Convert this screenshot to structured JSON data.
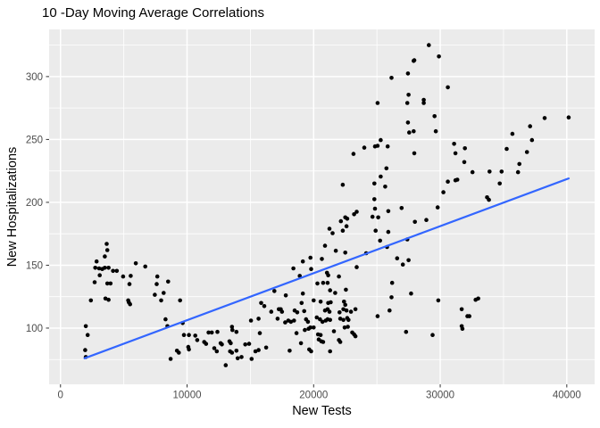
{
  "chart_data": {
    "type": "scatter",
    "title": "10 -Day Moving Average Correlations",
    "xlabel": "New Tests",
    "ylabel": "New Hospitalizations",
    "xlim": [
      -900,
      42200
    ],
    "ylim": [
      55.3,
      337.5
    ],
    "x_major_ticks": [
      0,
      10000,
      20000,
      30000,
      40000
    ],
    "x_tick_labels": [
      "0",
      "10000",
      "20000",
      "30000",
      "40000"
    ],
    "x_minor_ticks": [
      5000,
      15000,
      25000,
      35000
    ],
    "y_major_ticks": [
      100,
      150,
      200,
      250,
      300
    ],
    "y_tick_labels": [
      "100",
      "150",
      "200",
      "250",
      "300"
    ],
    "y_minor_ticks": [
      75,
      125,
      175,
      225,
      275,
      325
    ],
    "grid": "on",
    "legend_position": "none",
    "colors": {
      "panel_bg": "#EBEBEB",
      "grid": "#FFFFFF",
      "point": "#000000",
      "trend": "#3366FF",
      "tick_text": "#4D4D4D",
      "tick_mark": "#333333",
      "title_text": "#000000"
    },
    "trend_line": {
      "model": "linear",
      "x1": 1900,
      "y1": 76,
      "x2": 40150,
      "y2": 219
    },
    "points": [
      [
        3650,
        167
      ],
      [
        3700,
        162
      ],
      [
        3500,
        157
      ],
      [
        2850,
        153
      ],
      [
        5950,
        151.5
      ],
      [
        6700,
        149
      ],
      [
        2750,
        148
      ],
      [
        3050,
        147.5
      ],
      [
        3300,
        147
      ],
      [
        3500,
        148
      ],
      [
        3800,
        148
      ],
      [
        4150,
        145.5
      ],
      [
        4450,
        145.5
      ],
      [
        3100,
        142
      ],
      [
        4950,
        141
      ],
      [
        5550,
        141.5
      ],
      [
        2700,
        136.5
      ],
      [
        3700,
        135.5
      ],
      [
        3950,
        135.5
      ],
      [
        5450,
        135
      ],
      [
        7650,
        141
      ],
      [
        7600,
        135
      ],
      [
        8500,
        137
      ],
      [
        8150,
        128
      ],
      [
        7450,
        126.5
      ],
      [
        2400,
        122
      ],
      [
        3550,
        123.5
      ],
      [
        3800,
        122.5
      ],
      [
        5350,
        122
      ],
      [
        5400,
        120.5
      ],
      [
        5500,
        119
      ],
      [
        9450,
        122
      ],
      [
        7950,
        122
      ],
      [
        8300,
        107
      ],
      [
        8450,
        101.5
      ],
      [
        2000,
        101.5
      ],
      [
        2150,
        94.5
      ],
      [
        9650,
        104
      ],
      [
        9750,
        94.5
      ],
      [
        10150,
        94.5
      ],
      [
        1950,
        82.5
      ],
      [
        2000,
        77
      ],
      [
        9200,
        82
      ],
      [
        9350,
        80.5
      ],
      [
        8700,
        75.5
      ],
      [
        10100,
        85
      ],
      [
        10150,
        83
      ],
      [
        10650,
        94
      ],
      [
        10800,
        90.5
      ],
      [
        11350,
        89
      ],
      [
        11500,
        87.5
      ],
      [
        11700,
        96.5
      ],
      [
        11950,
        96.5
      ],
      [
        12400,
        97
      ],
      [
        12150,
        84
      ],
      [
        12350,
        81.5
      ],
      [
        12650,
        88
      ],
      [
        12750,
        87
      ],
      [
        13350,
        89.5
      ],
      [
        13450,
        88
      ],
      [
        13550,
        101
      ],
      [
        13400,
        81.5
      ],
      [
        13550,
        80.5
      ],
      [
        13050,
        70.5
      ],
      [
        13900,
        97
      ],
      [
        13580,
        98.5
      ],
      [
        13900,
        82
      ],
      [
        14000,
        76
      ],
      [
        14300,
        77
      ],
      [
        14600,
        87
      ],
      [
        14900,
        87.5
      ],
      [
        15400,
        81.5
      ],
      [
        15650,
        82.5
      ],
      [
        16250,
        84.5
      ],
      [
        15100,
        75.5
      ],
      [
        15050,
        106
      ],
      [
        15650,
        107.5
      ],
      [
        15750,
        96
      ],
      [
        15850,
        120
      ],
      [
        16100,
        117.5
      ],
      [
        16650,
        113
      ],
      [
        16900,
        129.5
      ],
      [
        17150,
        107.5
      ],
      [
        17250,
        115
      ],
      [
        17400,
        115
      ],
      [
        17500,
        113
      ],
      [
        17750,
        104.5
      ],
      [
        17800,
        126
      ],
      [
        18000,
        106
      ],
      [
        18100,
        82
      ],
      [
        18200,
        105
      ],
      [
        18400,
        147.5
      ],
      [
        18450,
        106
      ],
      [
        18500,
        114
      ],
      [
        18650,
        96
      ],
      [
        18700,
        112.5
      ],
      [
        18900,
        141.5
      ],
      [
        19000,
        88
      ],
      [
        19050,
        120
      ],
      [
        19150,
        153
      ],
      [
        19150,
        127.5
      ],
      [
        19250,
        113.5
      ],
      [
        19300,
        98.5
      ],
      [
        19400,
        107
      ],
      [
        19550,
        105
      ],
      [
        19600,
        99.5
      ],
      [
        19650,
        83
      ],
      [
        19750,
        156
      ],
      [
        19750,
        100.5
      ],
      [
        19800,
        147
      ],
      [
        19800,
        81.5
      ],
      [
        20000,
        122
      ],
      [
        20000,
        100.5
      ],
      [
        20250,
        108.5
      ],
      [
        20300,
        135.5
      ],
      [
        20350,
        95
      ],
      [
        20400,
        91
      ],
      [
        20500,
        107
      ],
      [
        20550,
        121
      ],
      [
        20550,
        94.5
      ],
      [
        20600,
        89.5
      ],
      [
        20650,
        155
      ],
      [
        20700,
        105
      ],
      [
        20750,
        136
      ],
      [
        20750,
        89
      ],
      [
        20900,
        165.5
      ],
      [
        20900,
        114
      ],
      [
        20950,
        106
      ],
      [
        21050,
        144
      ],
      [
        21100,
        136
      ],
      [
        21100,
        115
      ],
      [
        21100,
        107
      ],
      [
        21150,
        142
      ],
      [
        21150,
        120
      ],
      [
        21250,
        179
      ],
      [
        21250,
        113
      ],
      [
        21300,
        130
      ],
      [
        21300,
        106.5
      ],
      [
        21300,
        81.5
      ],
      [
        21350,
        120.5
      ],
      [
        21500,
        175.5
      ],
      [
        21600,
        97.5
      ],
      [
        21700,
        128
      ],
      [
        21750,
        161.5
      ],
      [
        22000,
        141
      ],
      [
        22000,
        90.5
      ],
      [
        22050,
        112.5
      ],
      [
        22100,
        107.5
      ],
      [
        22100,
        89
      ],
      [
        22150,
        185
      ],
      [
        22300,
        177.5
      ],
      [
        22300,
        214
      ],
      [
        22350,
        115
      ],
      [
        22350,
        106.5
      ],
      [
        22400,
        121
      ],
      [
        22450,
        100.5
      ],
      [
        22500,
        188
      ],
      [
        22500,
        160
      ],
      [
        22500,
        118.5
      ],
      [
        22550,
        130.5
      ],
      [
        22600,
        181
      ],
      [
        22600,
        114
      ],
      [
        22650,
        187
      ],
      [
        22650,
        108
      ],
      [
        22700,
        101
      ],
      [
        22750,
        106.5
      ],
      [
        22950,
        113
      ],
      [
        23050,
        96.5
      ],
      [
        23150,
        238.5
      ],
      [
        23200,
        190.5
      ],
      [
        23200,
        95
      ],
      [
        23300,
        115
      ],
      [
        23300,
        93.5
      ],
      [
        23400,
        192.5
      ],
      [
        23400,
        148.5
      ],
      [
        24000,
        243.5
      ],
      [
        24150,
        159.5
      ],
      [
        24650,
        188.5
      ],
      [
        24800,
        215
      ],
      [
        24800,
        202.5
      ],
      [
        24850,
        244.5
      ],
      [
        24850,
        195
      ],
      [
        24900,
        177.5
      ],
      [
        25050,
        279
      ],
      [
        25050,
        245
      ],
      [
        25050,
        109.5
      ],
      [
        25100,
        188
      ],
      [
        25250,
        169.5
      ],
      [
        25300,
        249.5
      ],
      [
        25300,
        220.5
      ],
      [
        25650,
        212.5
      ],
      [
        25750,
        227
      ],
      [
        25800,
        164.5
      ],
      [
        25850,
        244.5
      ],
      [
        25900,
        193
      ],
      [
        25900,
        176.5
      ],
      [
        26000,
        114
      ],
      [
        26150,
        299
      ],
      [
        26150,
        124.5
      ],
      [
        26200,
        136
      ],
      [
        26600,
        155.5
      ],
      [
        26950,
        195.5
      ],
      [
        27050,
        150.5
      ],
      [
        27300,
        97
      ],
      [
        27400,
        279
      ],
      [
        27400,
        170.5
      ],
      [
        27450,
        302.5
      ],
      [
        27450,
        263.5
      ],
      [
        27500,
        285.5
      ],
      [
        27500,
        154
      ],
      [
        27550,
        255.5
      ],
      [
        27700,
        127.5
      ],
      [
        27900,
        312.5
      ],
      [
        27900,
        256.5
      ],
      [
        27950,
        313
      ],
      [
        27950,
        239
      ],
      [
        28000,
        184.5
      ],
      [
        28700,
        281.5
      ],
      [
        28700,
        279
      ],
      [
        28900,
        186
      ],
      [
        29100,
        325
      ],
      [
        29400,
        94.5
      ],
      [
        29550,
        268.5
      ],
      [
        29650,
        256.5
      ],
      [
        29800,
        196
      ],
      [
        29850,
        122
      ],
      [
        29900,
        316
      ],
      [
        30250,
        208
      ],
      [
        30600,
        291.5
      ],
      [
        30600,
        216.5
      ],
      [
        31100,
        246.5
      ],
      [
        31200,
        239
      ],
      [
        31200,
        217.5
      ],
      [
        31350,
        218
      ],
      [
        31700,
        115
      ],
      [
        31700,
        101.5
      ],
      [
        31750,
        99.5
      ],
      [
        31900,
        232
      ],
      [
        31950,
        243
      ],
      [
        32150,
        109.5
      ],
      [
        32300,
        109.5
      ],
      [
        32550,
        224
      ],
      [
        32800,
        122.5
      ],
      [
        33000,
        123.5
      ],
      [
        33700,
        204
      ],
      [
        33850,
        202
      ],
      [
        33900,
        224.5
      ],
      [
        34700,
        215
      ],
      [
        34850,
        224.5
      ],
      [
        35250,
        242.5
      ],
      [
        35700,
        254.5
      ],
      [
        36150,
        224
      ],
      [
        36250,
        230.5
      ],
      [
        36850,
        240
      ],
      [
        37100,
        260.5
      ],
      [
        37250,
        249.5
      ],
      [
        38250,
        267
      ],
      [
        40150,
        267.5
      ]
    ]
  }
}
